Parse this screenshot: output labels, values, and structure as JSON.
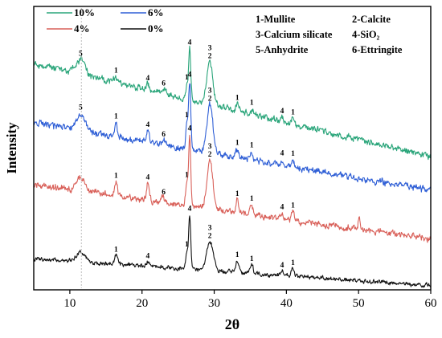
{
  "chart_data": {
    "type": "line",
    "xlabel": "2θ",
    "ylabel": "Intensity",
    "xlim": [
      5,
      60
    ],
    "x_ticks": [
      10,
      20,
      30,
      40,
      50,
      60
    ],
    "y_ticks_shown": false,
    "grid": false,
    "reference_line_x": 11.6,
    "legend_position": "top-left",
    "series": [
      {
        "name": "10%",
        "color": "#2aa57a",
        "baseline_start": 0.8,
        "baseline_end": 0.47,
        "noise": 0.015,
        "peaks": [
          {
            "x": 11.5,
            "h": 0.05,
            "w": 0.6,
            "label": "5"
          },
          {
            "x": 16.4,
            "h": 0.02,
            "w": 0.2,
            "label": "1"
          },
          {
            "x": 20.8,
            "h": 0.02,
            "w": 0.2,
            "label": "4"
          },
          {
            "x": 23.0,
            "h": 0.015,
            "w": 0.3,
            "label": "6"
          },
          {
            "x": 26.2,
            "h": 0.05,
            "w": 0.15,
            "label": "1"
          },
          {
            "x": 26.6,
            "h": 0.18,
            "w": 0.15,
            "label": "4"
          },
          {
            "x": 29.4,
            "h": 0.15,
            "w": 0.4,
            "label": "3\n2"
          },
          {
            "x": 33.2,
            "h": 0.025,
            "w": 0.2,
            "label": "1"
          },
          {
            "x": 35.2,
            "h": 0.02,
            "w": 0.2,
            "label": "1"
          },
          {
            "x": 39.4,
            "h": 0.015,
            "w": 0.2,
            "label": "4"
          },
          {
            "x": 40.9,
            "h": 0.02,
            "w": 0.2,
            "label": "1"
          }
        ]
      },
      {
        "name": "6%",
        "color": "#2f5fd6",
        "baseline_start": 0.59,
        "baseline_end": 0.35,
        "noise": 0.015,
        "peaks": [
          {
            "x": 11.5,
            "h": 0.06,
            "w": 0.6,
            "label": "5"
          },
          {
            "x": 16.4,
            "h": 0.05,
            "w": 0.2,
            "label": "1"
          },
          {
            "x": 20.8,
            "h": 0.04,
            "w": 0.2,
            "label": "4"
          },
          {
            "x": 23.0,
            "h": 0.015,
            "w": 0.3,
            "label": "6"
          },
          {
            "x": 26.2,
            "h": 0.09,
            "w": 0.15,
            "label": "1"
          },
          {
            "x": 26.6,
            "h": 0.24,
            "w": 0.15,
            "label": "4"
          },
          {
            "x": 29.4,
            "h": 0.17,
            "w": 0.4,
            "label": "3\n2"
          },
          {
            "x": 33.2,
            "h": 0.03,
            "w": 0.2,
            "label": "1"
          },
          {
            "x": 35.2,
            "h": 0.03,
            "w": 0.2,
            "label": "1"
          },
          {
            "x": 39.4,
            "h": 0.02,
            "w": 0.2,
            "label": "4"
          },
          {
            "x": 40.9,
            "h": 0.025,
            "w": 0.2,
            "label": "1"
          }
        ]
      },
      {
        "name": "4%",
        "color": "#d9615a",
        "baseline_start": 0.37,
        "baseline_end": 0.18,
        "noise": 0.015,
        "peaks": [
          {
            "x": 11.5,
            "h": 0.05,
            "w": 0.6
          },
          {
            "x": 16.4,
            "h": 0.05,
            "w": 0.2,
            "label": "1"
          },
          {
            "x": 20.8,
            "h": 0.06,
            "w": 0.2,
            "label": "4"
          },
          {
            "x": 23.0,
            "h": 0.015,
            "w": 0.3,
            "label": "6"
          },
          {
            "x": 26.2,
            "h": 0.08,
            "w": 0.15,
            "label": "1"
          },
          {
            "x": 26.6,
            "h": 0.25,
            "w": 0.15,
            "label": "4"
          },
          {
            "x": 29.4,
            "h": 0.17,
            "w": 0.4,
            "label": "3\n2"
          },
          {
            "x": 33.2,
            "h": 0.045,
            "w": 0.2,
            "label": "1"
          },
          {
            "x": 35.2,
            "h": 0.035,
            "w": 0.2,
            "label": "1"
          },
          {
            "x": 39.4,
            "h": 0.02,
            "w": 0.2,
            "label": "4"
          },
          {
            "x": 40.9,
            "h": 0.03,
            "w": 0.2,
            "label": "1"
          },
          {
            "x": 50.1,
            "h": 0.04,
            "w": 0.15
          }
        ]
      },
      {
        "name": "0%",
        "color": "#111111",
        "baseline_start": 0.11,
        "baseline_end": 0.015,
        "noise": 0.01,
        "peaks": [
          {
            "x": 11.5,
            "h": 0.035,
            "w": 0.6
          },
          {
            "x": 16.4,
            "h": 0.03,
            "w": 0.2,
            "label": "1"
          },
          {
            "x": 20.8,
            "h": 0.015,
            "w": 0.2,
            "label": "4"
          },
          {
            "x": 26.2,
            "h": 0.06,
            "w": 0.15,
            "label": "1"
          },
          {
            "x": 26.6,
            "h": 0.19,
            "w": 0.15,
            "label": "4"
          },
          {
            "x": 29.4,
            "h": 0.1,
            "w": 0.5,
            "label": "3\n2"
          },
          {
            "x": 33.2,
            "h": 0.04,
            "w": 0.2,
            "label": "1"
          },
          {
            "x": 35.2,
            "h": 0.03,
            "w": 0.2,
            "label": "1"
          },
          {
            "x": 39.4,
            "h": 0.015,
            "w": 0.2,
            "label": "4"
          },
          {
            "x": 40.9,
            "h": 0.025,
            "w": 0.2,
            "label": "1"
          }
        ]
      }
    ],
    "phase_key": [
      {
        "id": "1",
        "name": "Mullite"
      },
      {
        "id": "2",
        "name": "Calcite"
      },
      {
        "id": "3",
        "name": "Calcium silicate"
      },
      {
        "id": "4",
        "name": "SiO₂"
      },
      {
        "id": "5",
        "name": "Anhydrite"
      },
      {
        "id": "6",
        "name": "Ettringite"
      }
    ]
  }
}
